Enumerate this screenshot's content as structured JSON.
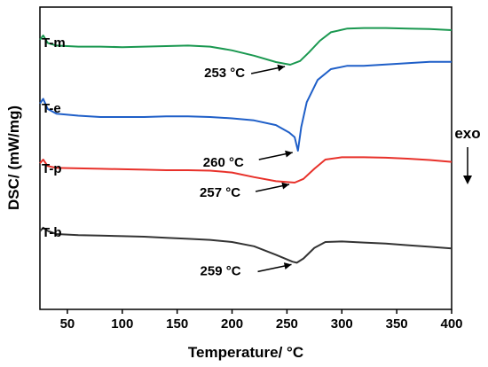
{
  "chart_data": {
    "type": "line",
    "xlabel": "Temperature/ °C",
    "ylabel": "DSC/ (mW/mg)",
    "xlim": [
      25,
      400
    ],
    "xticks": [
      50,
      100,
      150,
      200,
      250,
      300,
      350,
      400
    ],
    "y_ticks_shown": false,
    "grid": false,
    "exo_indicator": {
      "text": "exo",
      "direction": "down"
    },
    "series": [
      {
        "name": "T-m",
        "color": "#1a9850",
        "peak_label": "253 °C",
        "peak_x": 253,
        "points": [
          [
            25,
            0.92
          ],
          [
            28,
            1.0
          ],
          [
            32,
            0.86
          ],
          [
            40,
            0.81
          ],
          [
            60,
            0.79
          ],
          [
            80,
            0.79
          ],
          [
            100,
            0.78
          ],
          [
            120,
            0.79
          ],
          [
            140,
            0.8
          ],
          [
            160,
            0.81
          ],
          [
            180,
            0.79
          ],
          [
            200,
            0.72
          ],
          [
            220,
            0.62
          ],
          [
            240,
            0.5
          ],
          [
            253,
            0.45
          ],
          [
            262,
            0.52
          ],
          [
            270,
            0.68
          ],
          [
            280,
            0.9
          ],
          [
            290,
            1.06
          ],
          [
            305,
            1.13
          ],
          [
            320,
            1.14
          ],
          [
            340,
            1.14
          ],
          [
            360,
            1.13
          ],
          [
            380,
            1.12
          ],
          [
            400,
            1.1
          ]
        ]
      },
      {
        "name": "T-e",
        "color": "#1f5fc8",
        "peak_label": "260 °C",
        "peak_x": 260,
        "points": [
          [
            25,
            0.7
          ],
          [
            28,
            0.77
          ],
          [
            32,
            0.62
          ],
          [
            40,
            0.55
          ],
          [
            60,
            0.52
          ],
          [
            80,
            0.5
          ],
          [
            100,
            0.5
          ],
          [
            120,
            0.5
          ],
          [
            140,
            0.51
          ],
          [
            160,
            0.51
          ],
          [
            180,
            0.5
          ],
          [
            200,
            0.48
          ],
          [
            220,
            0.45
          ],
          [
            240,
            0.38
          ],
          [
            252,
            0.27
          ],
          [
            257,
            0.2
          ],
          [
            260,
            0.0
          ],
          [
            263,
            0.35
          ],
          [
            268,
            0.72
          ],
          [
            278,
            1.05
          ],
          [
            290,
            1.21
          ],
          [
            305,
            1.26
          ],
          [
            320,
            1.26
          ],
          [
            340,
            1.28
          ],
          [
            360,
            1.3
          ],
          [
            380,
            1.32
          ],
          [
            400,
            1.32
          ]
        ]
      },
      {
        "name": "T-p",
        "color": "#e8312a",
        "peak_label": "257 °C",
        "peak_x": 257,
        "points": [
          [
            25,
            0.92
          ],
          [
            28,
            1.0
          ],
          [
            32,
            0.86
          ],
          [
            40,
            0.82
          ],
          [
            60,
            0.81
          ],
          [
            80,
            0.8
          ],
          [
            100,
            0.79
          ],
          [
            120,
            0.78
          ],
          [
            140,
            0.77
          ],
          [
            160,
            0.77
          ],
          [
            180,
            0.76
          ],
          [
            200,
            0.72
          ],
          [
            220,
            0.62
          ],
          [
            240,
            0.53
          ],
          [
            257,
            0.5
          ],
          [
            265,
            0.58
          ],
          [
            275,
            0.8
          ],
          [
            285,
            1.0
          ],
          [
            300,
            1.05
          ],
          [
            320,
            1.05
          ],
          [
            340,
            1.04
          ],
          [
            360,
            1.02
          ],
          [
            380,
            0.99
          ],
          [
            400,
            0.95
          ]
        ]
      },
      {
        "name": "T-b",
        "color": "#333333",
        "peak_label": "259 °C",
        "peak_x": 259,
        "points": [
          [
            25,
            0.95
          ],
          [
            28,
            1.02
          ],
          [
            32,
            0.96
          ],
          [
            40,
            0.9
          ],
          [
            60,
            0.88
          ],
          [
            80,
            0.87
          ],
          [
            100,
            0.86
          ],
          [
            120,
            0.85
          ],
          [
            140,
            0.83
          ],
          [
            160,
            0.81
          ],
          [
            180,
            0.79
          ],
          [
            200,
            0.75
          ],
          [
            220,
            0.67
          ],
          [
            240,
            0.51
          ],
          [
            255,
            0.38
          ],
          [
            259,
            0.36
          ],
          [
            265,
            0.44
          ],
          [
            275,
            0.64
          ],
          [
            285,
            0.75
          ],
          [
            300,
            0.76
          ],
          [
            320,
            0.74
          ],
          [
            340,
            0.72
          ],
          [
            360,
            0.69
          ],
          [
            380,
            0.66
          ],
          [
            400,
            0.63
          ]
        ]
      }
    ]
  }
}
